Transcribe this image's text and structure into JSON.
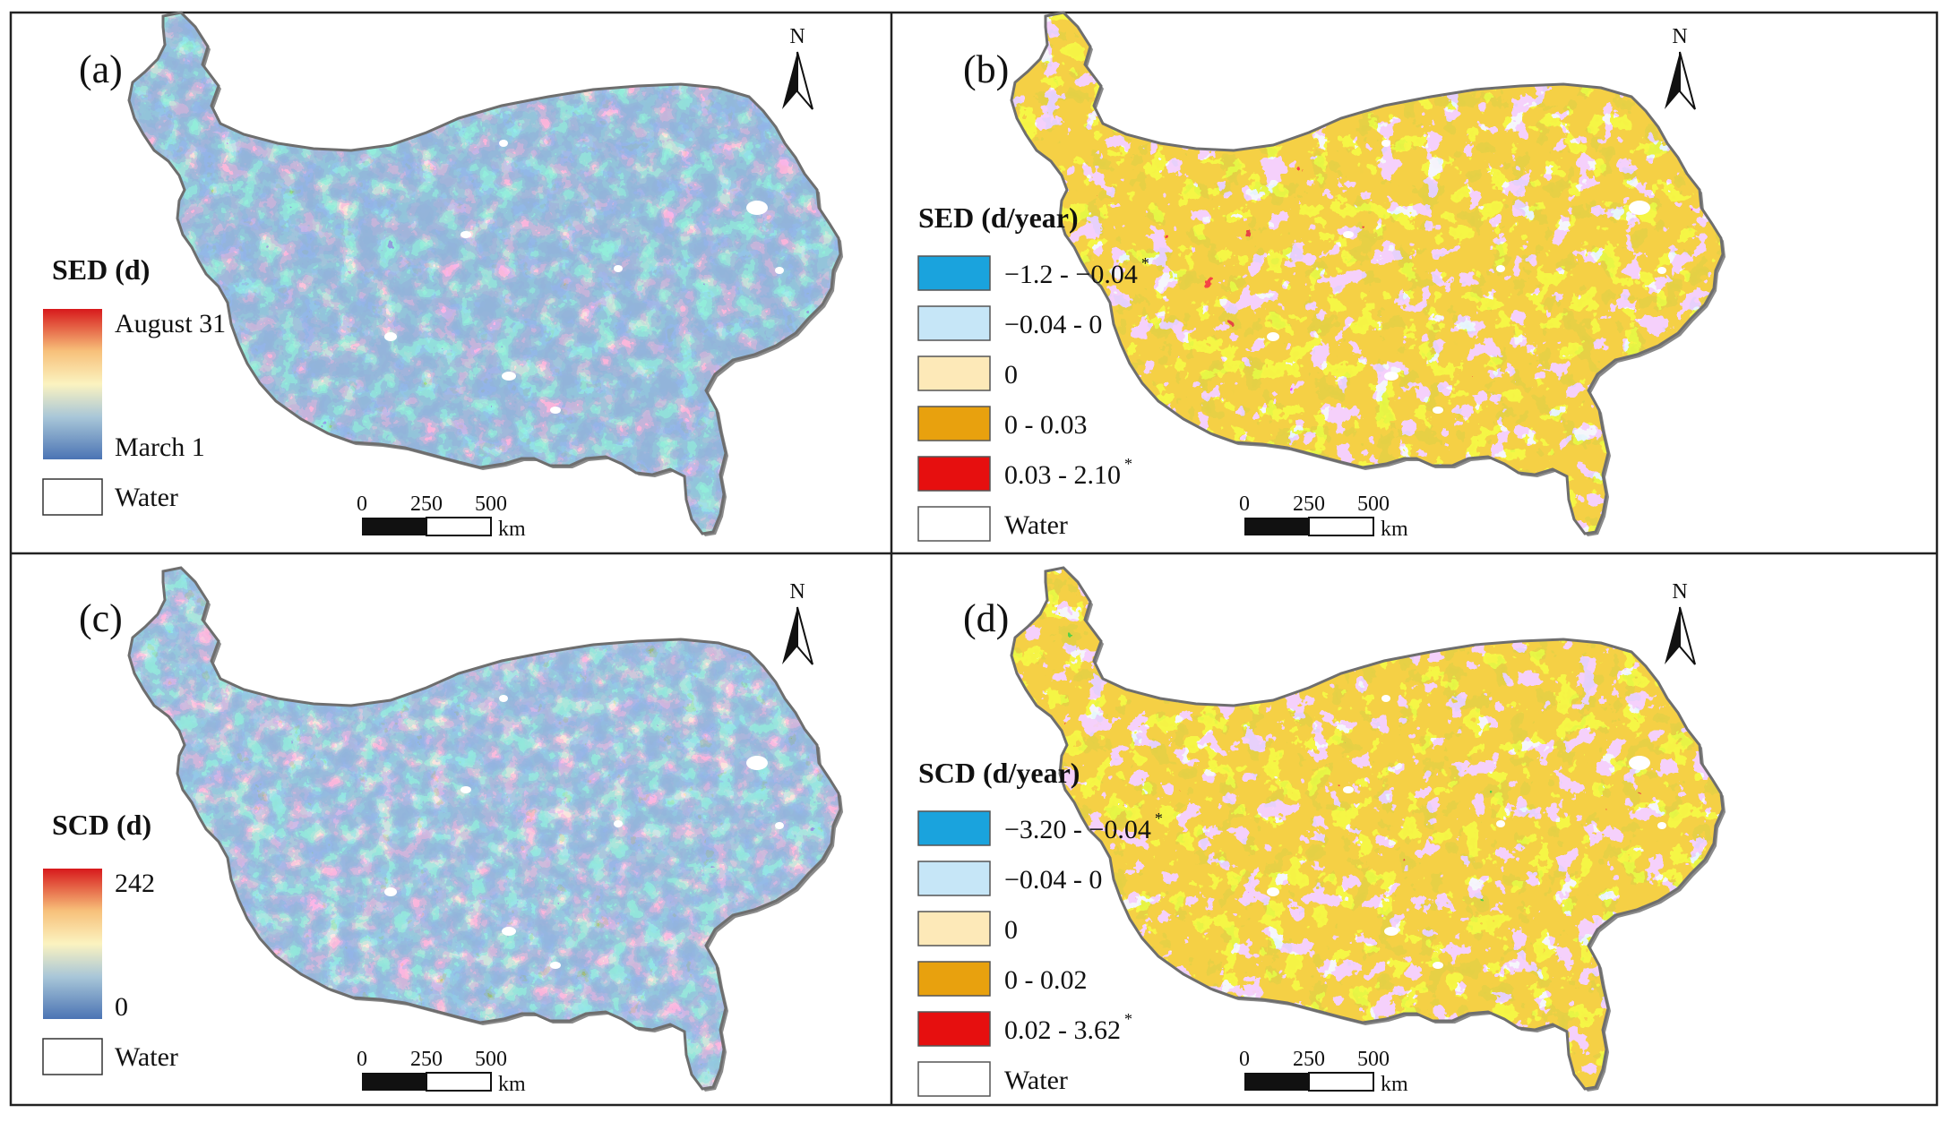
{
  "figure": {
    "panels": [
      {
        "id": "a",
        "tag": "(a)",
        "map_style": "continuous-sed",
        "legend": {
          "type": "gradient",
          "title": "SED (d)",
          "max_label": "August 31",
          "min_label": "March 1",
          "colors": [
            "#d7191c",
            "#f7c07a",
            "#fbf3c0",
            "#a8c6d8",
            "#4b74b4"
          ],
          "water_label": "Water"
        },
        "north": "N",
        "scale": {
          "ticks": [
            "0",
            "250",
            "500"
          ],
          "unit": "km"
        }
      },
      {
        "id": "b",
        "tag": "(b)",
        "map_style": "trend-sed",
        "legend": {
          "type": "classes",
          "title": "SED (d/year)",
          "classes": [
            {
              "label": "−1.2 - −0.04",
              "sig": "*",
              "color": "#1aa3dd"
            },
            {
              "label": "−0.04 - 0",
              "sig": "",
              "color": "#c6e6f7"
            },
            {
              "label": "0",
              "sig": "",
              "color": "#fde9b8"
            },
            {
              "label": "0 - 0.03",
              "sig": "",
              "color": "#e8a10e"
            },
            {
              "label": "0.03 - 2.10",
              "sig": "*",
              "color": "#e60f0f"
            },
            {
              "label": "Water",
              "sig": "",
              "color": "#ffffff"
            }
          ]
        },
        "north": "N",
        "scale": {
          "ticks": [
            "0",
            "250",
            "500"
          ],
          "unit": "km"
        }
      },
      {
        "id": "c",
        "tag": "(c)",
        "map_style": "continuous-scd",
        "legend": {
          "type": "gradient",
          "title": "SCD (d)",
          "max_label": "242",
          "min_label": "0",
          "colors": [
            "#d7191c",
            "#f7c07a",
            "#fbf3c0",
            "#a8c6d8",
            "#4b74b4"
          ],
          "water_label": "Water"
        },
        "north": "N",
        "scale": {
          "ticks": [
            "0",
            "250",
            "500"
          ],
          "unit": "km"
        }
      },
      {
        "id": "d",
        "tag": "(d)",
        "map_style": "trend-scd",
        "legend": {
          "type": "classes",
          "title": "SCD (d/year)",
          "classes": [
            {
              "label": "−3.20 - −0.04",
              "sig": "*",
              "color": "#1aa3dd"
            },
            {
              "label": "−0.04 - 0",
              "sig": "",
              "color": "#c6e6f7"
            },
            {
              "label": "0",
              "sig": "",
              "color": "#fde9b8"
            },
            {
              "label": "0 - 0.02",
              "sig": "",
              "color": "#e8a10e"
            },
            {
              "label": "0.02 - 3.62",
              "sig": "*",
              "color": "#e60f0f"
            },
            {
              "label": "Water",
              "sig": "",
              "color": "#ffffff"
            }
          ]
        },
        "north": "N",
        "scale": {
          "ticks": [
            "0",
            "250",
            "500"
          ],
          "unit": "km"
        }
      }
    ]
  }
}
